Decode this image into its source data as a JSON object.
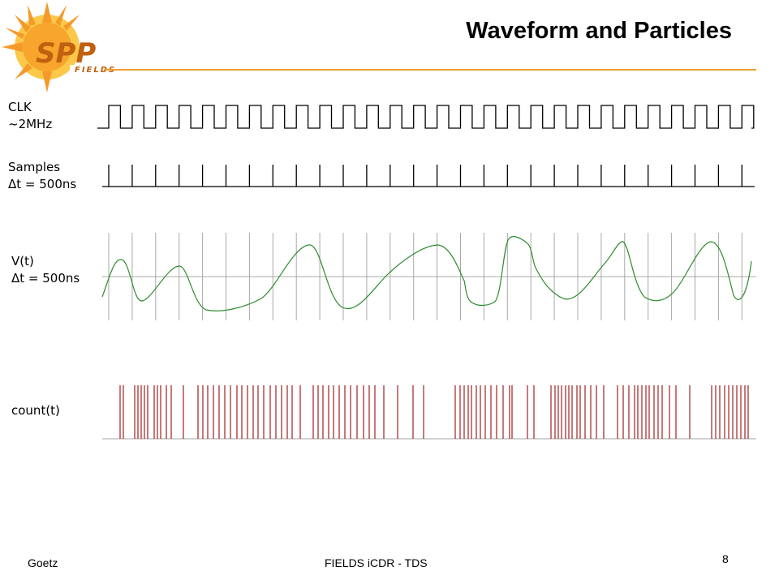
{
  "title": "Waveform and Particles",
  "logo": {
    "text": "SPP",
    "subtext": "FIELDS"
  },
  "labels": {
    "clk": [
      "CLK",
      "~2MHz"
    ],
    "samples": [
      "Samples",
      "Δt = 500ns"
    ],
    "vt": [
      "V(t)",
      "Δt = 500ns"
    ],
    "count": [
      "count(t)"
    ]
  },
  "footer": {
    "author": "Goetz",
    "center": "FIELDS iCDR - TDS",
    "page": "8"
  },
  "colors": {
    "waveform": "#2e8b2e",
    "counts": "#a02020",
    "grid": "#a8a8a8",
    "accent": "#f0a030"
  },
  "signals": {
    "clock_cycles": 28,
    "sample_count": 28,
    "counts_t": [
      148,
      152,
      166,
      170,
      174,
      178,
      182,
      190,
      194,
      198,
      205,
      211,
      226,
      244,
      250,
      256,
      263,
      270,
      277,
      284,
      292,
      298,
      305,
      312,
      318,
      325,
      333,
      340,
      347,
      354,
      360,
      370,
      386,
      392,
      398,
      405,
      411,
      418,
      425,
      432,
      440,
      448,
      455,
      462,
      473,
      490,
      509,
      522,
      561,
      567,
      572,
      577,
      581,
      587,
      592,
      598,
      605,
      612,
      620,
      628,
      631,
      650,
      658,
      679,
      684,
      688,
      692,
      697,
      701,
      705,
      711,
      715,
      721,
      728,
      735,
      744,
      761,
      768,
      775,
      782,
      786,
      791,
      796,
      800,
      806,
      811,
      816,
      825,
      833,
      850,
      877,
      882,
      887,
      893,
      898,
      903,
      908,
      913,
      918,
      922
    ]
  }
}
